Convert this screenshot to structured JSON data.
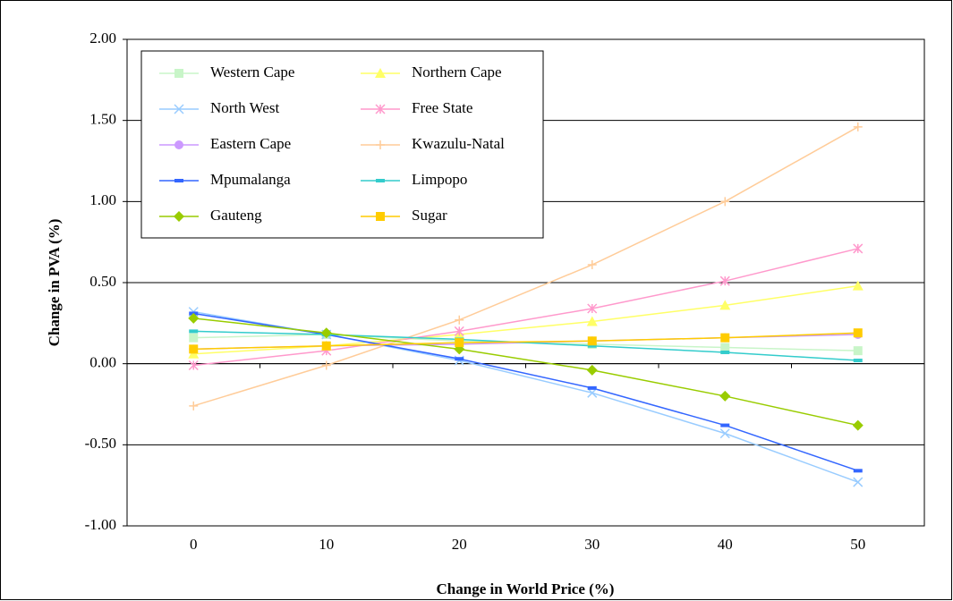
{
  "chart_data": {
    "type": "line",
    "xlabel": "Change in World Price (%)",
    "ylabel": "Change in PVA (%)",
    "categories": [
      0,
      10,
      20,
      30,
      40,
      50
    ],
    "ylim": [
      -1,
      2
    ],
    "yticks": [
      {
        "value": -1,
        "label": "-1.00"
      },
      {
        "value": -0.5,
        "label": "-0.50"
      },
      {
        "value": 0,
        "label": "0.00"
      },
      {
        "value": 0.5,
        "label": "0.50"
      },
      {
        "value": 1,
        "label": "1.00"
      },
      {
        "value": 1.5,
        "label": "1.50"
      },
      {
        "value": 2,
        "label": "2.00"
      }
    ],
    "grid": true,
    "legend": "top-left",
    "series": [
      {
        "name": "Western Cape",
        "color": "#c8f5c8",
        "marker": "square",
        "values": [
          0.16,
          0.18,
          0.14,
          0.12,
          0.1,
          0.08
        ]
      },
      {
        "name": "Northern Cape",
        "color": "#ffff66",
        "marker": "triangle",
        "values": [
          0.06,
          0.11,
          0.18,
          0.26,
          0.36,
          0.48
        ]
      },
      {
        "name": "North West",
        "color": "#99ccff",
        "marker": "x",
        "values": [
          0.32,
          0.18,
          0.02,
          -0.18,
          -0.43,
          -0.73
        ]
      },
      {
        "name": "Free State",
        "color": "#ff99cc",
        "marker": "star",
        "values": [
          -0.01,
          0.08,
          0.2,
          0.34,
          0.51,
          0.71
        ]
      },
      {
        "name": "Eastern Cape",
        "color": "#cc99ff",
        "marker": "circle",
        "values": [
          0.09,
          0.11,
          0.12,
          0.14,
          0.16,
          0.18
        ]
      },
      {
        "name": "Kwazulu-Natal",
        "color": "#ffcc99",
        "marker": "plus",
        "values": [
          -0.26,
          -0.01,
          0.27,
          0.61,
          1.0,
          1.46
        ]
      },
      {
        "name": "Mpumalanga",
        "color": "#3366ff",
        "marker": "dash",
        "values": [
          0.31,
          0.18,
          0.03,
          -0.15,
          -0.38,
          -0.66
        ]
      },
      {
        "name": "Limpopo",
        "color": "#33cccc",
        "marker": "dash",
        "values": [
          0.2,
          0.18,
          0.15,
          0.11,
          0.07,
          0.02
        ]
      },
      {
        "name": "Gauteng",
        "color": "#99cc00",
        "marker": "diamond",
        "values": [
          0.28,
          0.19,
          0.09,
          -0.04,
          -0.2,
          -0.38
        ]
      },
      {
        "name": "Sugar",
        "color": "#ffcc00",
        "marker": "square",
        "values": [
          0.09,
          0.11,
          0.13,
          0.14,
          0.16,
          0.19
        ]
      }
    ]
  }
}
